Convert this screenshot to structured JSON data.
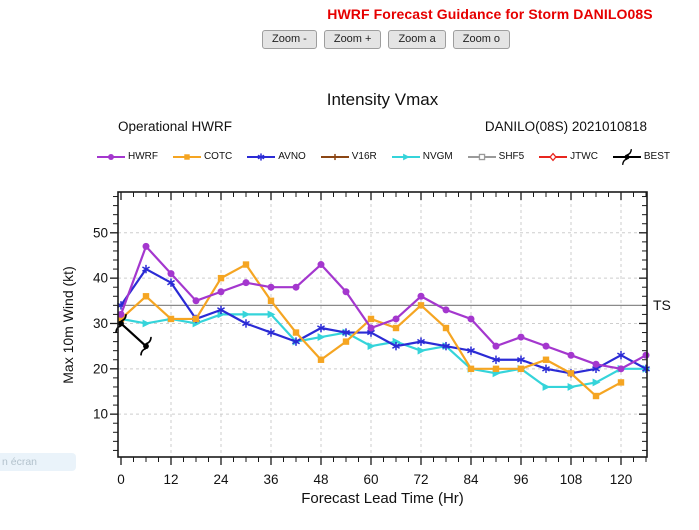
{
  "header": {
    "title": "HWRF Forecast Guidance for Storm DANILO08S",
    "color": "#e60000"
  },
  "toolbar": {
    "buttons": [
      {
        "name": "zoom-out-button",
        "label": "Zoom -"
      },
      {
        "name": "zoom-in-button",
        "label": "Zoom +"
      },
      {
        "name": "zoom-all-button",
        "label": "Zoom a"
      },
      {
        "name": "zoom-original-button",
        "label": "Zoom o"
      }
    ]
  },
  "chart": {
    "title": "Intensity Vmax",
    "subtitle_left": "Operational HWRF",
    "subtitle_right": "DANILO(08S) 2021010818"
  },
  "fullscreen_hint": {
    "text": "n écran"
  },
  "chart_data": {
    "type": "line",
    "title": "Intensity Vmax",
    "xlabel": "Forecast Lead Time (Hr)",
    "ylabel": "Max 10m Wind (kt)",
    "x_ticks": [
      0,
      12,
      24,
      36,
      48,
      60,
      72,
      84,
      96,
      108,
      120
    ],
    "x_minor_step": 3,
    "y_ticks": [
      10,
      20,
      30,
      40,
      50
    ],
    "y_minor_step": 2,
    "xlim": [
      -0.72,
      126.24
    ],
    "ylim": [
      0.55,
      59.0
    ],
    "grid": true,
    "legend_position": "top",
    "reference_line": {
      "value": 34,
      "label": "TS",
      "color": "#8a8a8a"
    },
    "series": [
      {
        "name": "HWRF",
        "color": "#a437ce",
        "marker": "circle",
        "hours": [
          0,
          6,
          12,
          18,
          24,
          30,
          36,
          42,
          48,
          54,
          60,
          66,
          72,
          78,
          84,
          90,
          96,
          102,
          108,
          114,
          120,
          126
        ],
        "values": [
          32,
          47,
          41,
          35,
          37,
          39,
          38,
          38,
          43,
          37,
          29,
          31,
          36,
          33,
          31,
          25,
          27,
          25,
          23,
          21,
          20,
          23
        ]
      },
      {
        "name": "COTC",
        "color": "#f5a522",
        "marker": "square",
        "hours": [
          0,
          6,
          12,
          18,
          24,
          30,
          36,
          42,
          48,
          54,
          60,
          66,
          72,
          78,
          84,
          90,
          96,
          102,
          108,
          114,
          120
        ],
        "values": [
          31,
          36,
          31,
          31,
          40,
          43,
          35,
          28,
          22,
          26,
          31,
          29,
          34,
          29,
          20,
          20,
          20,
          22,
          19,
          14,
          17
        ]
      },
      {
        "name": "AVNO",
        "color": "#2b2bd5",
        "marker": "asterisk",
        "hours": [
          0,
          6,
          12,
          18,
          24,
          30,
          36,
          42,
          48,
          54,
          60,
          66,
          72,
          78,
          84,
          90,
          96,
          102,
          108,
          114,
          120,
          126
        ],
        "values": [
          34,
          42,
          39,
          31,
          33,
          30,
          28,
          26,
          29,
          28,
          28,
          25,
          26,
          25,
          24,
          22,
          22,
          20,
          19,
          20,
          23,
          20
        ]
      },
      {
        "name": "V16R",
        "color": "#8b4513",
        "marker": "plus",
        "hours": [],
        "values": []
      },
      {
        "name": "NVGM",
        "color": "#35d4da",
        "marker": "triangle-right",
        "hours": [
          0,
          6,
          12,
          18,
          24,
          30,
          36,
          42,
          48,
          54,
          60,
          66,
          72,
          78,
          84,
          90,
          96,
          102,
          108,
          114,
          120,
          126
        ],
        "values": [
          31,
          30,
          31,
          30,
          32,
          32,
          32,
          26,
          27,
          28,
          25,
          26,
          24,
          25,
          20,
          19,
          20,
          16,
          16,
          17,
          20,
          20
        ]
      },
      {
        "name": "SHF5",
        "color": "#9a9a9a",
        "marker": "square-open",
        "hours": [],
        "values": []
      },
      {
        "name": "JTWC",
        "color": "#e8261f",
        "marker": "diamond-open",
        "hours": [],
        "values": []
      },
      {
        "name": "BEST",
        "color": "#000000",
        "marker": "hurricane",
        "hours": [
          0,
          6
        ],
        "values": [
          30,
          25
        ]
      }
    ]
  }
}
